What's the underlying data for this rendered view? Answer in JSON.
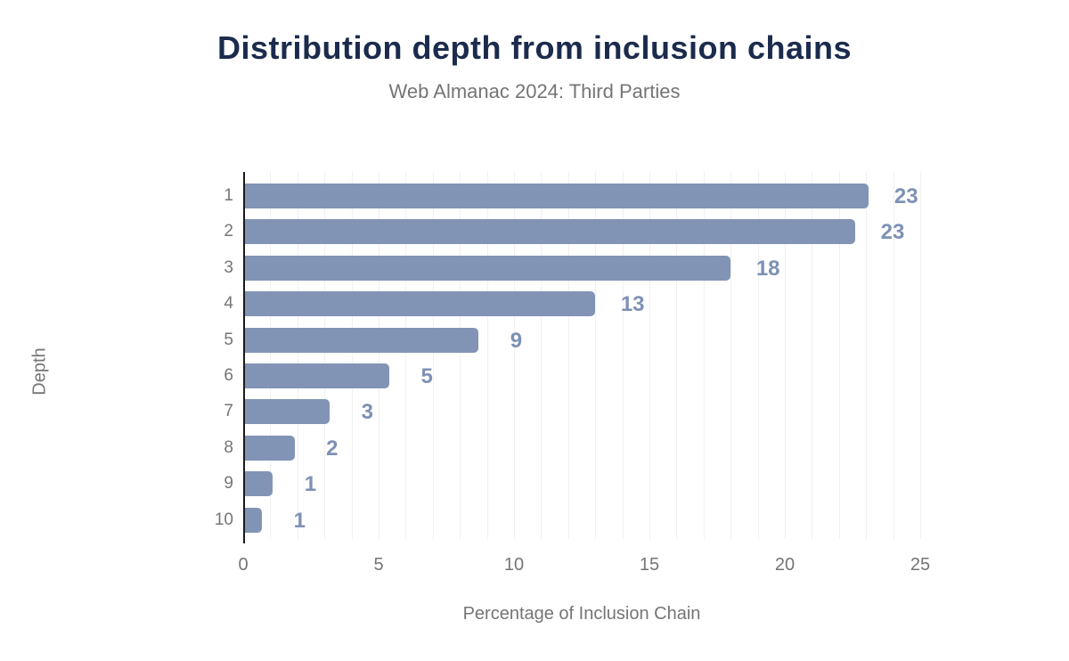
{
  "header": {
    "title": "Distribution depth from inclusion chains",
    "subtitle": "Web Almanac 2024: Third Parties"
  },
  "chart_data": {
    "type": "bar",
    "orientation": "horizontal",
    "title": "Distribution depth from inclusion chains",
    "subtitle": "Web Almanac 2024: Third Parties",
    "xlabel": "Percentage of Inclusion Chain",
    "ylabel": "Depth",
    "categories": [
      "1",
      "2",
      "3",
      "4",
      "5",
      "6",
      "7",
      "8",
      "9",
      "10"
    ],
    "values": [
      23.1,
      22.6,
      18.0,
      13.0,
      8.7,
      5.4,
      3.2,
      1.9,
      1.1,
      0.7
    ],
    "value_labels": [
      "23",
      "23",
      "18",
      "13",
      "9",
      "5",
      "3",
      "2",
      "1",
      "1"
    ],
    "xlim": [
      0,
      25
    ],
    "xticks": [
      0,
      5,
      10,
      15,
      20,
      25
    ],
    "grid": {
      "vertical_step": 1,
      "shown": true
    },
    "legend": "none",
    "colors": {
      "background": "#ffffff",
      "bar": "#8294b6",
      "value_label": "#7d91b5",
      "title": "#1b2b4d",
      "subtitle": "#757575",
      "axis_text": "#757575",
      "gridline": "#f0f0f0",
      "axis_line": "#1a1a1a"
    }
  }
}
